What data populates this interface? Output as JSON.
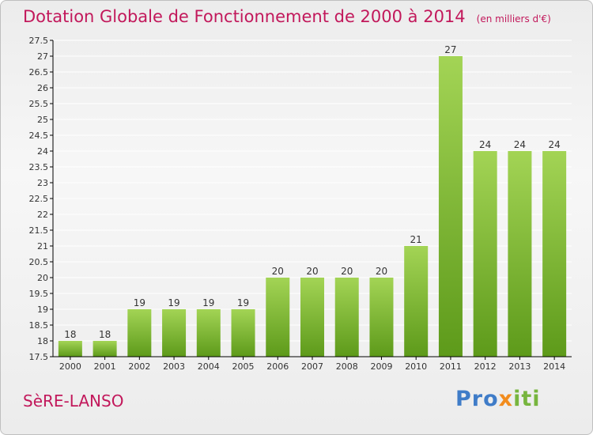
{
  "title": "Dotation Globale de Fonctionnement de 2000 à 2014",
  "unit": "(en milliers d'€)",
  "commune": "SèRE-LANSO",
  "brand": {
    "part1": "Pro",
    "part2": "x",
    "part3": "iti"
  },
  "colors": {
    "title": "#c2185b",
    "bar_light": "#a3d455",
    "bar_dark": "#5d9a1a",
    "axis": "#000000",
    "grid": "#ffffff"
  },
  "chart_data": {
    "type": "bar",
    "categories": [
      "2000",
      "2001",
      "2002",
      "2003",
      "2004",
      "2005",
      "2006",
      "2007",
      "2008",
      "2009",
      "2010",
      "2011",
      "2012",
      "2013",
      "2014"
    ],
    "values": [
      18,
      18,
      19,
      19,
      19,
      19,
      20,
      20,
      20,
      20,
      21,
      27,
      24,
      24,
      24
    ],
    "ylim": [
      17.5,
      27.5
    ],
    "yticks": [
      "17.5",
      "18",
      "18.5",
      "19",
      "19.5",
      "20",
      "20.5",
      "21",
      "21.5",
      "22",
      "22.5",
      "23",
      "23.5",
      "24",
      "24.5",
      "25",
      "25.5",
      "26",
      "26.5",
      "27",
      "27.5"
    ],
    "grid": true
  }
}
